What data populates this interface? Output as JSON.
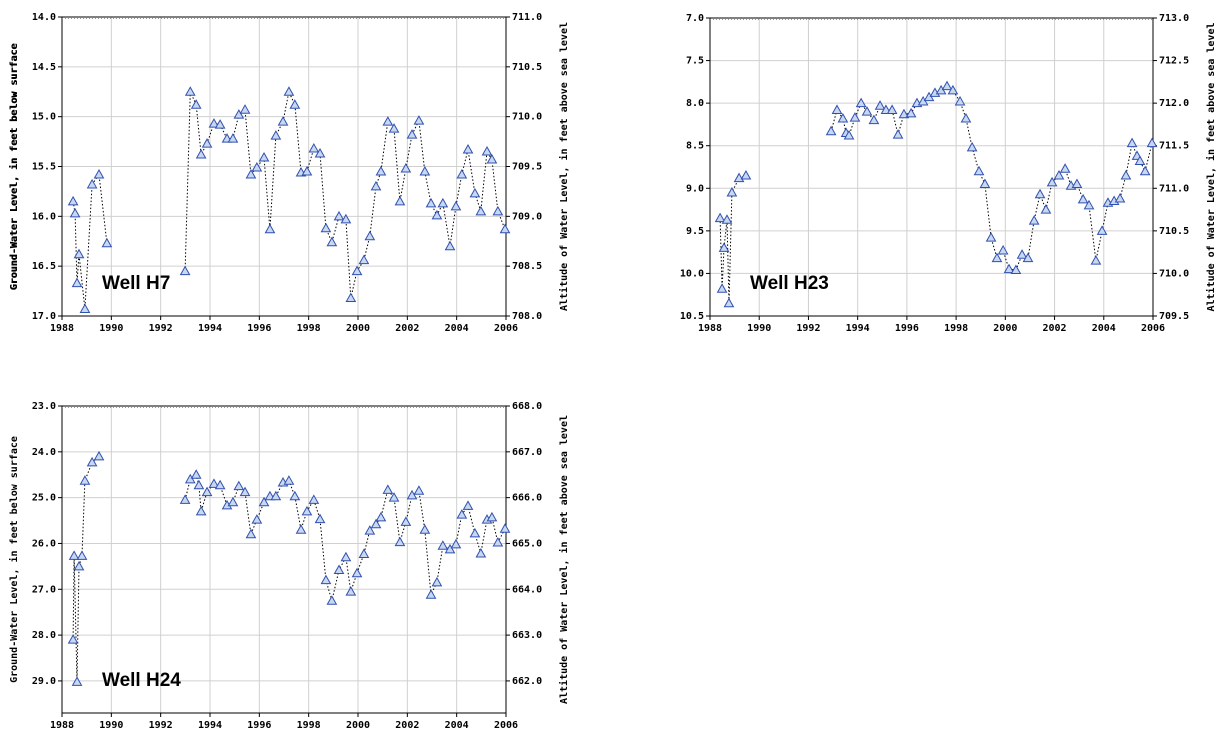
{
  "chart_data": [
    {
      "type": "line",
      "annotation": "Well H7",
      "ylabel": "Ground-Water Level, in feet below surface",
      "y2label": "Altitude of Water Level, in feet above sea level",
      "xlim": [
        1988,
        2006
      ],
      "xticks": [
        1988,
        1990,
        1992,
        1994,
        1996,
        1998,
        2000,
        2002,
        2004,
        2006
      ],
      "ylim": [
        17.0,
        14.0
      ],
      "yticks": [
        {
          "value": 14,
          "label": "14.0"
        },
        {
          "value": 14.5,
          "label": "14.5"
        },
        {
          "value": 15,
          "label": "15.0"
        },
        {
          "value": 15.5,
          "label": "15.5"
        },
        {
          "value": 16,
          "label": "16.0"
        },
        {
          "value": 16.5,
          "label": "16.5"
        },
        {
          "value": 17,
          "label": "17.0"
        }
      ],
      "y2lim": [
        708.0,
        711.0
      ],
      "y2ticks": [
        {
          "value": 711,
          "label": "711.0"
        },
        {
          "value": 710.5,
          "label": "710.5"
        },
        {
          "value": 710,
          "label": "710.0"
        },
        {
          "value": 709.5,
          "label": "709.5"
        },
        {
          "value": 709,
          "label": "709.0"
        },
        {
          "value": 708.5,
          "label": "708.5"
        },
        {
          "value": 708,
          "label": "708.0"
        }
      ],
      "grid": true,
      "color": "#3050b0",
      "line_color": "#000000",
      "x": [
        1988.45,
        1988.53,
        1988.61,
        1988.69,
        1988.93,
        1989.22,
        1989.5,
        1989.82,
        null,
        1992.99,
        1993.2,
        1993.44,
        1993.64,
        1993.88,
        1994.16,
        1994.41,
        1994.69,
        1994.93,
        1995.17,
        1995.42,
        1995.66,
        1995.9,
        1996.19,
        1996.43,
        1996.67,
        1996.96,
        1997.2,
        1997.44,
        1997.69,
        1997.93,
        1998.21,
        1998.46,
        1998.7,
        1998.94,
        1999.23,
        1999.51,
        1999.71,
        1999.96,
        2000.24,
        2000.48,
        2000.73,
        2000.93,
        2001.21,
        2001.46,
        2001.7,
        2001.94,
        2002.19,
        2002.47,
        2002.71,
        2002.96,
        2003.2,
        2003.44,
        2003.73,
        2003.97,
        2004.21,
        2004.46,
        2004.74,
        2004.98,
        2005.23,
        2005.43,
        2005.67,
        2005.96
      ],
      "values": [
        15.85,
        15.97,
        16.67,
        16.38,
        16.93,
        15.68,
        15.58,
        16.27,
        null,
        16.55,
        14.75,
        14.88,
        15.38,
        15.27,
        15.07,
        15.08,
        15.22,
        15.22,
        14.98,
        14.93,
        15.58,
        15.51,
        15.41,
        16.13,
        15.19,
        15.05,
        14.75,
        14.88,
        15.56,
        15.55,
        15.32,
        15.37,
        16.12,
        16.26,
        16.0,
        16.03,
        16.82,
        16.55,
        16.44,
        16.2,
        15.7,
        15.55,
        15.05,
        15.12,
        15.85,
        15.52,
        15.18,
        15.04,
        15.55,
        15.87,
        15.99,
        15.87,
        16.3,
        15.9,
        15.58,
        15.33,
        15.77,
        15.95,
        15.35,
        15.43,
        15.95,
        16.13
      ]
    },
    {
      "type": "line",
      "annotation": "Well H23",
      "ylabel": "Ground-Water Level, in feet below surface",
      "y2label": "Altitude of Water Level, in feet above sea level",
      "xlim": [
        1988,
        2006
      ],
      "xticks": [
        1988,
        1990,
        1992,
        1994,
        1996,
        1998,
        2000,
        2002,
        2004,
        2006
      ],
      "ylim": [
        10.5,
        7.0
      ],
      "yticks": [
        {
          "value": 7,
          "label": "7.0"
        },
        {
          "value": 7.5,
          "label": "7.5"
        },
        {
          "value": 8,
          "label": "8.0"
        },
        {
          "value": 8.5,
          "label": "8.5"
        },
        {
          "value": 9,
          "label": "9.0"
        },
        {
          "value": 9.5,
          "label": "9.5"
        },
        {
          "value": 10,
          "label": "10.0"
        },
        {
          "value": 10.5,
          "label": "10.5"
        }
      ],
      "y2lim": [
        709.5,
        713.0
      ],
      "y2ticks": [
        {
          "value": 713,
          "label": "713.0"
        },
        {
          "value": 712.5,
          "label": "712.5"
        },
        {
          "value": 712,
          "label": "712.0"
        },
        {
          "value": 711.5,
          "label": "711.5"
        },
        {
          "value": 711,
          "label": "711.0"
        },
        {
          "value": 710.5,
          "label": "710.5"
        },
        {
          "value": 710,
          "label": "710.0"
        },
        {
          "value": 709.5,
          "label": "709.5"
        }
      ],
      "grid": true,
      "color": "#3050b0",
      "line_color": "#000000",
      "x": [
        1988.41,
        1988.49,
        1988.57,
        1988.69,
        1988.77,
        1988.89,
        1989.18,
        1989.46,
        null,
        1992.92,
        1993.16,
        1993.4,
        1993.53,
        1993.65,
        1993.89,
        1994.14,
        1994.38,
        1994.66,
        1994.91,
        1995.15,
        1995.4,
        1995.64,
        1995.88,
        1996.17,
        1996.41,
        1996.66,
        1996.9,
        1997.14,
        1997.39,
        1997.63,
        1997.87,
        1998.16,
        1998.4,
        1998.65,
        1998.93,
        1999.17,
        1999.42,
        1999.66,
        1999.91,
        2000.15,
        2000.43,
        2000.68,
        2000.92,
        2001.17,
        2001.41,
        2001.65,
        2001.9,
        2002.18,
        2002.43,
        2002.67,
        2002.91,
        2003.16,
        2003.4,
        2003.68,
        2003.93,
        2004.17,
        2004.42,
        2004.66,
        2004.9,
        2005.15,
        2005.35,
        2005.47,
        2005.68,
        2005.96
      ],
      "values": [
        9.35,
        10.18,
        9.7,
        9.37,
        10.35,
        9.05,
        8.88,
        8.85,
        null,
        8.33,
        8.08,
        8.18,
        8.35,
        8.38,
        8.17,
        8.0,
        8.1,
        8.2,
        8.03,
        8.08,
        8.08,
        8.37,
        8.13,
        8.12,
        8.0,
        7.98,
        7.93,
        7.88,
        7.85,
        7.8,
        7.85,
        7.98,
        8.18,
        8.52,
        8.8,
        8.95,
        9.58,
        9.82,
        9.73,
        9.95,
        9.96,
        9.78,
        9.82,
        9.38,
        9.07,
        9.25,
        8.93,
        8.85,
        8.77,
        8.97,
        8.95,
        9.13,
        9.2,
        9.85,
        9.5,
        9.17,
        9.15,
        9.12,
        8.85,
        8.47,
        8.62,
        8.68,
        8.8,
        8.47
      ]
    },
    {
      "type": "line",
      "annotation": "Well H24",
      "ylabel": "Ground-Water Level, in feet below surface",
      "y2label": "Altitude of Water Level, in feet above sea level",
      "xlim": [
        1988,
        2006
      ],
      "xticks": [
        1988,
        1990,
        1992,
        1994,
        1996,
        1998,
        2000,
        2002,
        2004,
        2006
      ],
      "ylim": [
        29.7,
        23.0
      ],
      "yticks": [
        {
          "value": 23,
          "label": "23.0"
        },
        {
          "value": 24,
          "label": "24.0"
        },
        {
          "value": 25,
          "label": "25.0"
        },
        {
          "value": 26,
          "label": "26.0"
        },
        {
          "value": 27,
          "label": "27.0"
        },
        {
          "value": 28,
          "label": "28.0"
        },
        {
          "value": 29,
          "label": "29.0"
        }
      ],
      "y2lim": [
        661.3,
        668.0
      ],
      "y2ticks": [
        {
          "value": 668,
          "label": "668.0"
        },
        {
          "value": 667,
          "label": "667.0"
        },
        {
          "value": 666,
          "label": "666.0"
        },
        {
          "value": 665,
          "label": "665.0"
        },
        {
          "value": 664,
          "label": "664.0"
        },
        {
          "value": 663,
          "label": "663.0"
        },
        {
          "value": 662,
          "label": "662.0"
        }
      ],
      "grid": true,
      "color": "#3050b0",
      "line_color": "#000000",
      "x": [
        1988.45,
        1988.49,
        1988.61,
        1988.69,
        1988.81,
        1988.93,
        1989.22,
        1989.5,
        null,
        1992.99,
        1993.2,
        1993.44,
        1993.55,
        1993.64,
        1993.88,
        1994.16,
        1994.41,
        1994.69,
        1994.93,
        1995.17,
        1995.42,
        1995.66,
        1995.9,
        1996.19,
        1996.43,
        1996.67,
        1996.96,
        1997.2,
        1997.44,
        1997.69,
        1997.93,
        1998.21,
        1998.46,
        1998.7,
        1998.94,
        1999.23,
        1999.51,
        1999.71,
        1999.96,
        2000.24,
        2000.48,
        2000.73,
        2000.93,
        2001.21,
        2001.46,
        2001.7,
        2001.94,
        2002.19,
        2002.47,
        2002.71,
        2002.96,
        2003.2,
        2003.44,
        2003.73,
        2003.97,
        2004.21,
        2004.46,
        2004.74,
        2004.98,
        2005.23,
        2005.43,
        2005.67,
        2005.96
      ],
      "values": [
        28.1,
        26.27,
        29.02,
        26.5,
        26.27,
        24.63,
        24.23,
        24.1,
        null,
        25.05,
        24.6,
        24.5,
        24.73,
        25.3,
        24.88,
        24.7,
        24.73,
        25.17,
        25.1,
        24.75,
        24.88,
        25.8,
        25.48,
        25.1,
        24.97,
        24.97,
        24.67,
        24.63,
        24.97,
        25.7,
        25.3,
        25.05,
        25.47,
        26.8,
        27.25,
        26.58,
        26.3,
        27.05,
        26.65,
        26.23,
        25.72,
        25.58,
        25.43,
        24.83,
        25.0,
        25.97,
        25.53,
        24.95,
        24.85,
        25.7,
        27.12,
        26.85,
        26.05,
        26.13,
        26.02,
        25.37,
        25.18,
        25.78,
        26.22,
        25.48,
        25.43,
        25.98,
        25.68
      ]
    }
  ]
}
